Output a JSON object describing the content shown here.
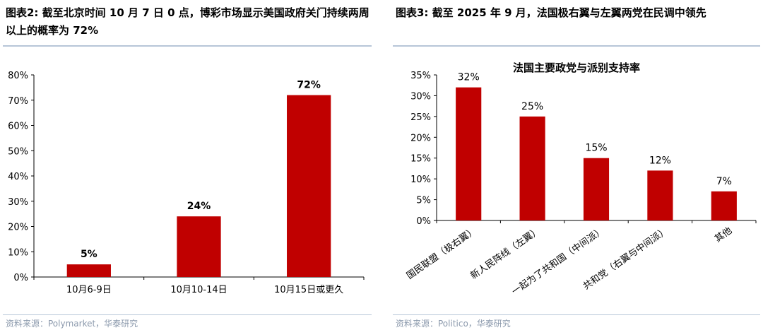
{
  "left": {
    "title": "图表2:  截至北京时间 10 月 7 日 0 点，博彩市场显示美国政府关门持续两周以上的概率为 72%",
    "source": "资料来源：Polymarket，华泰研究"
  },
  "right": {
    "title": "图表3:  截至 2025 年 9 月，法国极右翼与左翼两党在民调中领先",
    "source": "资料来源：Politico，华泰研究"
  },
  "chart_data": [
    {
      "type": "bar",
      "title": "",
      "categories": [
        "10月6-9日",
        "10月10-14日",
        "10月15日或更久"
      ],
      "values": [
        5,
        24,
        72
      ],
      "data_labels": [
        "5%",
        "24%",
        "72%"
      ],
      "y_ticks": [
        "0%",
        "10%",
        "20%",
        "30%",
        "40%",
        "50%",
        "60%",
        "70%",
        "80%"
      ],
      "ylim": [
        0,
        80
      ],
      "xlabel": "",
      "ylabel": "",
      "grid": false,
      "bar_color": "#c00000"
    },
    {
      "type": "bar",
      "title": "法国主要政党与派别支持率",
      "categories": [
        "国民联盟（极右翼）",
        "新人民阵线（左翼）",
        "一起为了共和国（中间派）",
        "共和党（右翼与中间派）",
        "其他"
      ],
      "values": [
        32,
        25,
        15,
        12,
        7
      ],
      "data_labels": [
        "32%",
        "25%",
        "15%",
        "12%",
        "7%"
      ],
      "y_ticks": [
        "0%",
        "5%",
        "10%",
        "15%",
        "20%",
        "25%",
        "30%",
        "35%"
      ],
      "ylim": [
        0,
        35
      ],
      "xlabel": "",
      "ylabel": "",
      "grid": false,
      "bar_color": "#c00000"
    }
  ]
}
